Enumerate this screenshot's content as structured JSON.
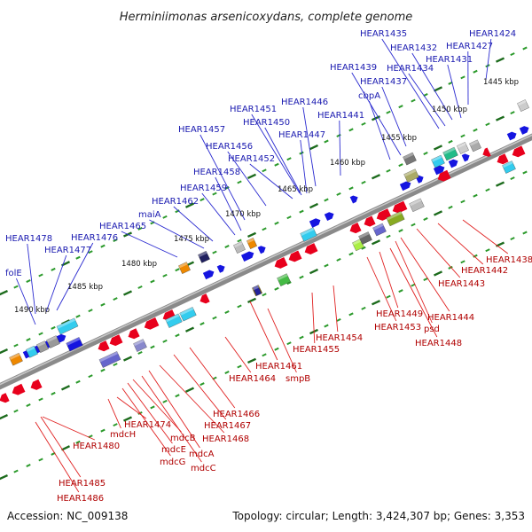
{
  "title": "Herminiimonas arsenicoxydans, complete genome",
  "footer": {
    "accession": "Accession: NC_009138",
    "summary": "Topology: circular; Length: 3,424,307 bp; Genes: 3,353"
  },
  "colors": {
    "top_strand": "#1a1aff",
    "bottom_strand": "#e8001c",
    "top_label": "#1a1ab0",
    "bottom_label": "#b00000",
    "backbone": "#7a7a7a"
  },
  "kbp_marks": [
    "1445 kbp",
    "1450 kbp",
    "1455 kbp",
    "1460 kbp",
    "1465 kbp",
    "1470 kbp",
    "1475 kbp",
    "1480 kbp",
    "1485 kbp",
    "1490 kbp"
  ],
  "top_labels": [
    "HEAR1424",
    "HEAR1427",
    "HEAR1431",
    "HEAR1432",
    "HEAR1434",
    "HEAR1435",
    "HEAR1437",
    "HEAR1439",
    "cbpA",
    "HEAR1441",
    "HEAR1446",
    "HEAR1447",
    "HEAR1450",
    "HEAR1451",
    "HEAR1452",
    "HEAR1456",
    "HEAR1457",
    "HEAR1458",
    "HEAR1459",
    "HEAR1462",
    "maiA",
    "HEAR1465",
    "HEAR1476",
    "HEAR1477",
    "HEAR1478",
    "folE"
  ],
  "bottom_labels": [
    "HEAR1438",
    "HEAR1442",
    "HEAR1443",
    "HEAR1444",
    "psd",
    "HEAR1448",
    "HEAR1449",
    "HEAR1453",
    "HEAR1454",
    "HEAR1455",
    "smpB",
    "HEAR1461",
    "HEAR1464",
    "HEAR1466",
    "HEAR1467",
    "HEAR1468",
    "mdcA",
    "mdcC",
    "mdcB",
    "mdcE",
    "mdcG",
    "HEAR1474",
    "mdcH",
    "HEAR1480",
    "HEAR1485",
    "HEAR1486"
  ]
}
